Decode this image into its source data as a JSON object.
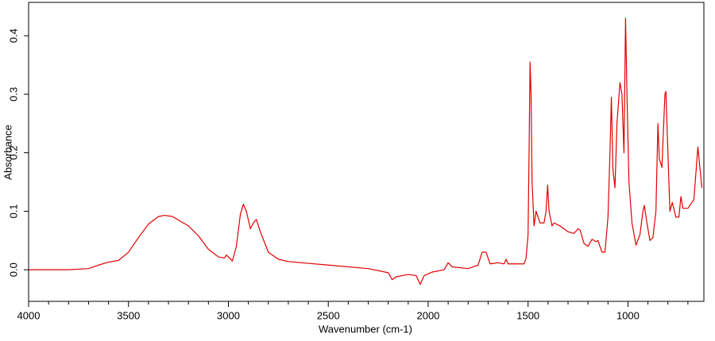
{
  "chart_data": {
    "type": "line",
    "x_label": "Wavenumber (cm-1)",
    "y_label": "Absorbance",
    "xlim": [
      4000,
      620
    ],
    "ylim": [
      -0.054,
      0.457
    ],
    "xticks": [
      4000,
      3500,
      3000,
      2500,
      2000,
      1500,
      1000
    ],
    "xminorticks": [
      3900,
      3800,
      3700,
      3600,
      3400,
      3300,
      3200,
      3100,
      2900,
      2800,
      2700,
      2600,
      2400,
      2300,
      2200,
      2100,
      1900,
      1800,
      1700,
      1600,
      1400,
      1300,
      1200,
      1100,
      900,
      800,
      700
    ],
    "yticks": [
      {
        "value": 0,
        "label": "0.0"
      },
      0.1,
      0.2,
      0.3,
      0.4
    ],
    "series": [
      {
        "color": "#e00000",
        "x": [
          4000,
          3800,
          3700,
          3650,
          3600,
          3550,
          3500,
          3450,
          3400,
          3350,
          3320,
          3280,
          3200,
          3150,
          3100,
          3050,
          3020,
          3010,
          3000,
          2980,
          2960,
          2940,
          2925,
          2910,
          2890,
          2875,
          2860,
          2840,
          2800,
          2750,
          2700,
          2500,
          2300,
          2200,
          2180,
          2160,
          2100,
          2060,
          2040,
          2020,
          1980,
          1920,
          1900,
          1880,
          1800,
          1750,
          1730,
          1710,
          1690,
          1650,
          1620,
          1610,
          1600,
          1520,
          1510,
          1500,
          1495,
          1490,
          1485,
          1480,
          1470,
          1460,
          1440,
          1420,
          1410,
          1402,
          1395,
          1380,
          1370,
          1340,
          1300,
          1270,
          1250,
          1240,
          1220,
          1200,
          1180,
          1160,
          1150,
          1130,
          1115,
          1100,
          1090,
          1083,
          1075,
          1065,
          1055,
          1040,
          1030,
          1020,
          1012,
          1005,
          995,
          980,
          960,
          940,
          925,
          918,
          905,
          890,
          875,
          860,
          850,
          843,
          830,
          815,
          810,
          800,
          790,
          778,
          760,
          745,
          735,
          725,
          700,
          670,
          650,
          630
        ],
        "values": [
          0,
          0,
          0.002,
          0.008,
          0.013,
          0.016,
          0.03,
          0.055,
          0.078,
          0.091,
          0.093,
          0.091,
          0.075,
          0.058,
          0.035,
          0.022,
          0.02,
          0.025,
          0.022,
          0.015,
          0.04,
          0.095,
          0.112,
          0.1,
          0.07,
          0.08,
          0.086,
          0.065,
          0.03,
          0.018,
          0.014,
          0.008,
          0.002,
          -0.005,
          -0.017,
          -0.012,
          -0.008,
          -0.01,
          -0.025,
          -0.01,
          -0.004,
          0,
          0.012,
          0.005,
          0.002,
          0.008,
          0.03,
          0.03,
          0.01,
          0.012,
          0.01,
          0.018,
          0.01,
          0.01,
          0.02,
          0.06,
          0.2,
          0.355,
          0.3,
          0.15,
          0.075,
          0.1,
          0.08,
          0.08,
          0.1,
          0.145,
          0.1,
          0.075,
          0.08,
          0.075,
          0.065,
          0.062,
          0.07,
          0.068,
          0.045,
          0.04,
          0.052,
          0.048,
          0.05,
          0.03,
          0.03,
          0.09,
          0.2,
          0.295,
          0.17,
          0.14,
          0.25,
          0.32,
          0.3,
          0.2,
          0.43,
          0.3,
          0.15,
          0.08,
          0.042,
          0.06,
          0.1,
          0.11,
          0.08,
          0.05,
          0.055,
          0.1,
          0.25,
          0.19,
          0.175,
          0.3,
          0.305,
          0.2,
          0.1,
          0.115,
          0.09,
          0.09,
          0.125,
          0.105,
          0.105,
          0.12,
          0.21,
          0.14
        ]
      }
    ]
  }
}
